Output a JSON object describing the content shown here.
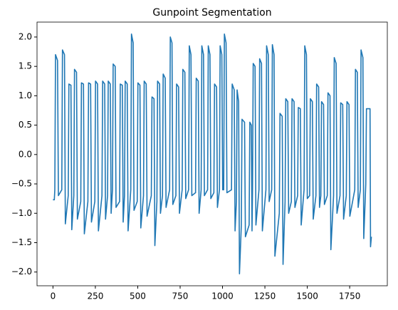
{
  "chart_data": {
    "type": "line",
    "title": "Gunpoint Segmentation",
    "color": "#1f77b4",
    "x": [
      0,
      8,
      11,
      15,
      27,
      32,
      52,
      56,
      68,
      73,
      90,
      94,
      106,
      111,
      123,
      127,
      139,
      144,
      164,
      168,
      180,
      185,
      206,
      210,
      222,
      227,
      247,
      251,
      263,
      268,
      289,
      293,
      305,
      310,
      322,
      326,
      338,
      343,
      351,
      355,
      367,
      372,
      393,
      397,
      409,
      414,
      422,
      426,
      438,
      443,
      459,
      463,
      473,
      478,
      497,
      501,
      513,
      518,
      534,
      538,
      550,
      555,
      580,
      584,
      596,
      601,
      613,
      617,
      629,
      634,
      646,
      650,
      662,
      667,
      688,
      692,
      702,
      707,
      725,
      729,
      741,
      746,
      762,
      766,
      778,
      783,
      800,
      804,
      814,
      819,
      841,
      845,
      857,
      862,
      874,
      878,
      888,
      893,
      912,
      916,
      926,
      931,
      949,
      953,
      965,
      970,
      982,
      986,
      996,
      1001,
      1007,
      1011,
      1021,
      1026,
      1053,
      1057,
      1069,
      1074,
      1082,
      1086,
      1095,
      1100,
      1111,
      1115,
      1130,
      1135,
      1157,
      1161,
      1170,
      1174,
      1177,
      1181,
      1192,
      1197,
      1215,
      1219,
      1230,
      1235,
      1256,
      1260,
      1270,
      1275,
      1290,
      1294,
      1304,
      1309,
      1335,
      1339,
      1352,
      1357,
      1369,
      1373,
      1385,
      1390,
      1406,
      1410,
      1422,
      1427,
      1443,
      1447,
      1459,
      1464,
      1481,
      1485,
      1495,
      1500,
      1514,
      1518,
      1530,
      1535,
      1551,
      1555,
      1567,
      1572,
      1580,
      1584,
      1596,
      1601,
      1618,
      1622,
      1634,
      1639,
      1655,
      1659,
      1670,
      1675,
      1693,
      1697,
      1709,
      1714,
      1730,
      1734,
      1746,
      1751,
      1780,
      1784,
      1795,
      1800,
      1813,
      1817,
      1828,
      1833,
      1845,
      1849,
      1870,
      1873,
      1878
    ],
    "values": [
      -0.77,
      -0.77,
      -0.6,
      1.7,
      1.6,
      -0.7,
      -0.6,
      1.78,
      1.7,
      -1.18,
      -0.7,
      1.2,
      1.18,
      -1.28,
      -0.7,
      1.45,
      1.4,
      -1.1,
      -0.8,
      1.22,
      1.2,
      -1.35,
      -0.8,
      1.22,
      1.2,
      -1.15,
      -0.8,
      1.25,
      1.2,
      -1.3,
      -0.7,
      1.25,
      1.2,
      -1.1,
      -0.7,
      1.25,
      1.2,
      -1.0,
      -0.6,
      1.54,
      1.5,
      -0.9,
      -0.8,
      1.2,
      1.18,
      -1.15,
      -0.7,
      1.25,
      1.2,
      -1.3,
      -0.6,
      2.05,
      1.9,
      -0.95,
      -0.8,
      1.22,
      1.18,
      -1.25,
      -0.7,
      1.25,
      1.2,
      -1.05,
      -0.7,
      0.98,
      0.95,
      -1.55,
      -0.8,
      1.25,
      1.2,
      -1.0,
      -0.7,
      1.37,
      1.3,
      -0.9,
      -0.6,
      2.0,
      1.9,
      -0.85,
      -0.7,
      1.2,
      1.15,
      -1.0,
      -0.6,
      1.45,
      1.4,
      -0.75,
      -0.6,
      1.85,
      1.7,
      -0.7,
      -0.65,
      1.3,
      1.25,
      -1.0,
      -0.6,
      1.85,
      1.7,
      -0.7,
      -0.6,
      1.85,
      1.7,
      -0.75,
      -0.65,
      1.2,
      1.15,
      -0.9,
      -0.6,
      1.85,
      1.7,
      -0.6,
      -0.6,
      2.05,
      1.9,
      -0.65,
      -0.6,
      1.2,
      1.1,
      -1.3,
      -0.8,
      1.1,
      0.9,
      -2.03,
      -1.2,
      0.6,
      0.55,
      -1.4,
      -1.2,
      0.55,
      0.5,
      -1.3,
      -0.6,
      1.55,
      1.5,
      -1.2,
      -0.6,
      1.63,
      1.55,
      -1.3,
      -0.6,
      1.85,
      1.7,
      -0.8,
      -0.6,
      1.87,
      1.7,
      -1.73,
      -1.0,
      0.7,
      0.65,
      -1.87,
      -0.8,
      0.95,
      0.9,
      -1.0,
      -0.8,
      0.95,
      0.9,
      -0.9,
      -0.7,
      0.8,
      0.78,
      -1.2,
      -0.6,
      1.85,
      1.7,
      -0.75,
      -0.7,
      0.95,
      0.9,
      -1.1,
      -0.7,
      1.2,
      1.15,
      -0.9,
      -0.7,
      0.9,
      0.85,
      -0.85,
      -0.7,
      1.05,
      1.0,
      -1.62,
      -0.7,
      1.65,
      1.55,
      -1.0,
      -0.7,
      0.88,
      0.85,
      -1.1,
      -0.7,
      0.9,
      0.85,
      -1.05,
      -0.6,
      1.45,
      1.4,
      -0.9,
      -0.6,
      1.78,
      1.65,
      -1.43,
      -0.5,
      0.78,
      0.78,
      -1.57,
      -1.4
    ],
    "xlim": [
      -94,
      1972
    ],
    "xticks": [
      0,
      250,
      500,
      750,
      1000,
      1250,
      1500,
      1750
    ],
    "ylim": [
      -2.234,
      2.254
    ],
    "yticks": [
      {
        "value": -2.0,
        "label": "−2.0"
      },
      {
        "value": -1.5,
        "label": "−1.5"
      },
      {
        "value": -1.0,
        "label": "−1.0"
      },
      {
        "value": -0.5,
        "label": "−0.5"
      },
      {
        "value": 0,
        "label": "0.0"
      },
      {
        "value": 0.5,
        "label": "0.5"
      },
      {
        "value": 1.0,
        "label": "1.0"
      },
      {
        "value": 1.5,
        "label": "1.5"
      },
      {
        "value": 2.0,
        "label": "2.0"
      }
    ]
  }
}
